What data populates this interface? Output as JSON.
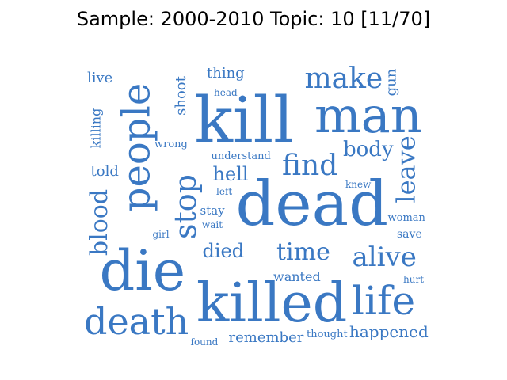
{
  "title": "Sample: 2000-2010 Topic: 10 [11/70]",
  "colors": {
    "word": "#3a78c3",
    "title": "#000000",
    "background": "#ffffff"
  },
  "words": [
    {
      "id": "killed",
      "text": "killed"
    },
    {
      "id": "dead",
      "text": "dead"
    },
    {
      "id": "kill",
      "text": "kill"
    },
    {
      "id": "die",
      "text": "die"
    },
    {
      "id": "man",
      "text": "man"
    },
    {
      "id": "people",
      "text": "people"
    },
    {
      "id": "death",
      "text": "death"
    },
    {
      "id": "life",
      "text": "life"
    },
    {
      "id": "stop",
      "text": "stop"
    },
    {
      "id": "find",
      "text": "find"
    },
    {
      "id": "make",
      "text": "make"
    },
    {
      "id": "alive",
      "text": "alive"
    },
    {
      "id": "time",
      "text": "time"
    },
    {
      "id": "blood",
      "text": "blood"
    },
    {
      "id": "leave",
      "text": "leave"
    },
    {
      "id": "body",
      "text": "body"
    },
    {
      "id": "died",
      "text": "died"
    },
    {
      "id": "hell",
      "text": "hell"
    },
    {
      "id": "happened",
      "text": "happened"
    },
    {
      "id": "remember",
      "text": "remember"
    },
    {
      "id": "shoot",
      "text": "shoot"
    },
    {
      "id": "thing",
      "text": "thing"
    },
    {
      "id": "killing",
      "text": "killing"
    },
    {
      "id": "gun",
      "text": "gun"
    },
    {
      "id": "told",
      "text": "told"
    },
    {
      "id": "live",
      "text": "live"
    },
    {
      "id": "wanted",
      "text": "wanted"
    },
    {
      "id": "stay",
      "text": "stay"
    },
    {
      "id": "save",
      "text": "save"
    },
    {
      "id": "woman",
      "text": "woman"
    },
    {
      "id": "understand",
      "text": "understand"
    },
    {
      "id": "thought",
      "text": "thought"
    },
    {
      "id": "wrong",
      "text": "wrong"
    },
    {
      "id": "head",
      "text": "head"
    },
    {
      "id": "wait",
      "text": "wait"
    },
    {
      "id": "found",
      "text": "found"
    },
    {
      "id": "knew",
      "text": "knew"
    },
    {
      "id": "hurt",
      "text": "hurt"
    },
    {
      "id": "left",
      "text": "left"
    },
    {
      "id": "girl",
      "text": "girl"
    }
  ]
}
